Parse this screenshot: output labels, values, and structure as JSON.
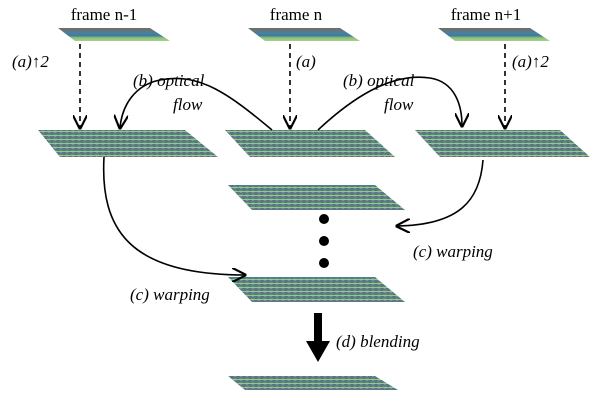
{
  "frames": [
    "frame n-1",
    "frame n",
    "frame n+1"
  ],
  "steps": {
    "upsample_left": "(a)↑2",
    "upsample_center": "(a)",
    "upsample_right": "(a)↑2",
    "flow_left": [
      "(b) optical",
      "flow"
    ],
    "flow_right": [
      "(b) optical",
      "flow"
    ],
    "warp_left": "(c) warping",
    "warp_right": "(c) warping",
    "blend": "(d) blending"
  }
}
